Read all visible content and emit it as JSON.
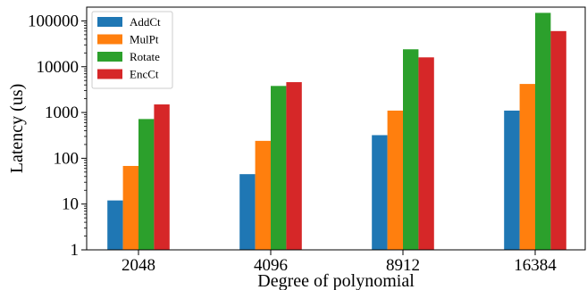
{
  "chart_data": {
    "type": "bar",
    "xlabel": "Degree of polynomial",
    "ylabel": "Latency (us)",
    "yscale": "log",
    "ylim": [
      1,
      200000
    ],
    "y_ticks": [
      1,
      10,
      100,
      1000,
      10000,
      100000
    ],
    "y_tick_labels": [
      "1",
      "10",
      "100",
      "1000",
      "10000",
      "100000"
    ],
    "categories": [
      "2048",
      "4096",
      "8912",
      "16384"
    ],
    "legend_position": "top-left",
    "grid": false,
    "series": [
      {
        "name": "AddCt",
        "color": "#1f77b4",
        "values": [
          12,
          45,
          320,
          1100
        ]
      },
      {
        "name": "MulPt",
        "color": "#ff7f0e",
        "values": [
          68,
          240,
          1100,
          4200
        ]
      },
      {
        "name": "Rotate",
        "color": "#2ca02c",
        "values": [
          720,
          3800,
          24000,
          150000
        ]
      },
      {
        "name": "EncCt",
        "color": "#d62728",
        "values": [
          1500,
          4600,
          16000,
          60000
        ]
      }
    ]
  }
}
